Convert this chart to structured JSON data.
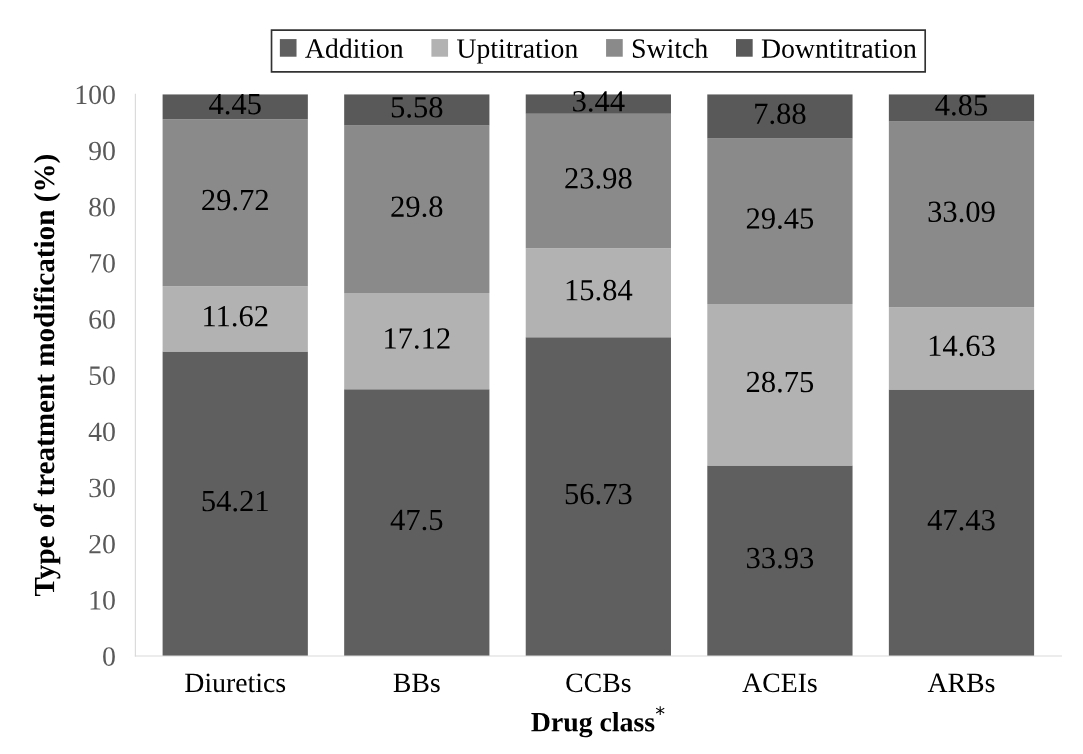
{
  "chart_data": {
    "type": "bar",
    "stacked": true,
    "xlabel": "Drug class$^{*}$",
    "ylabel": "Type of treatment modification (%)",
    "categories": [
      "Diuretics",
      "BBs",
      "CCBs",
      "ACEIs",
      "ARBs"
    ],
    "series": [
      {
        "name": "Addition",
        "color": "#5f5f5f",
        "values": [
          54.21,
          47.5,
          56.73,
          33.93,
          47.43
        ]
      },
      {
        "name": "Uptitration",
        "color": "#b2b2b2",
        "values": [
          11.62,
          17.12,
          15.84,
          28.75,
          14.63
        ]
      },
      {
        "name": "Switch",
        "color": "#8a8a8a",
        "values": [
          29.72,
          29.8,
          23.98,
          29.45,
          33.09
        ]
      },
      {
        "name": "Downtitration",
        "color": "#595959",
        "values": [
          4.45,
          5.58,
          3.44,
          7.88,
          4.85
        ]
      }
    ],
    "ylim": [
      0,
      100
    ],
    "yticks": [
      0,
      10,
      20,
      30,
      40,
      50,
      60,
      70,
      80,
      90,
      100
    ],
    "data_labels": true,
    "legend": "top",
    "grid": false
  }
}
